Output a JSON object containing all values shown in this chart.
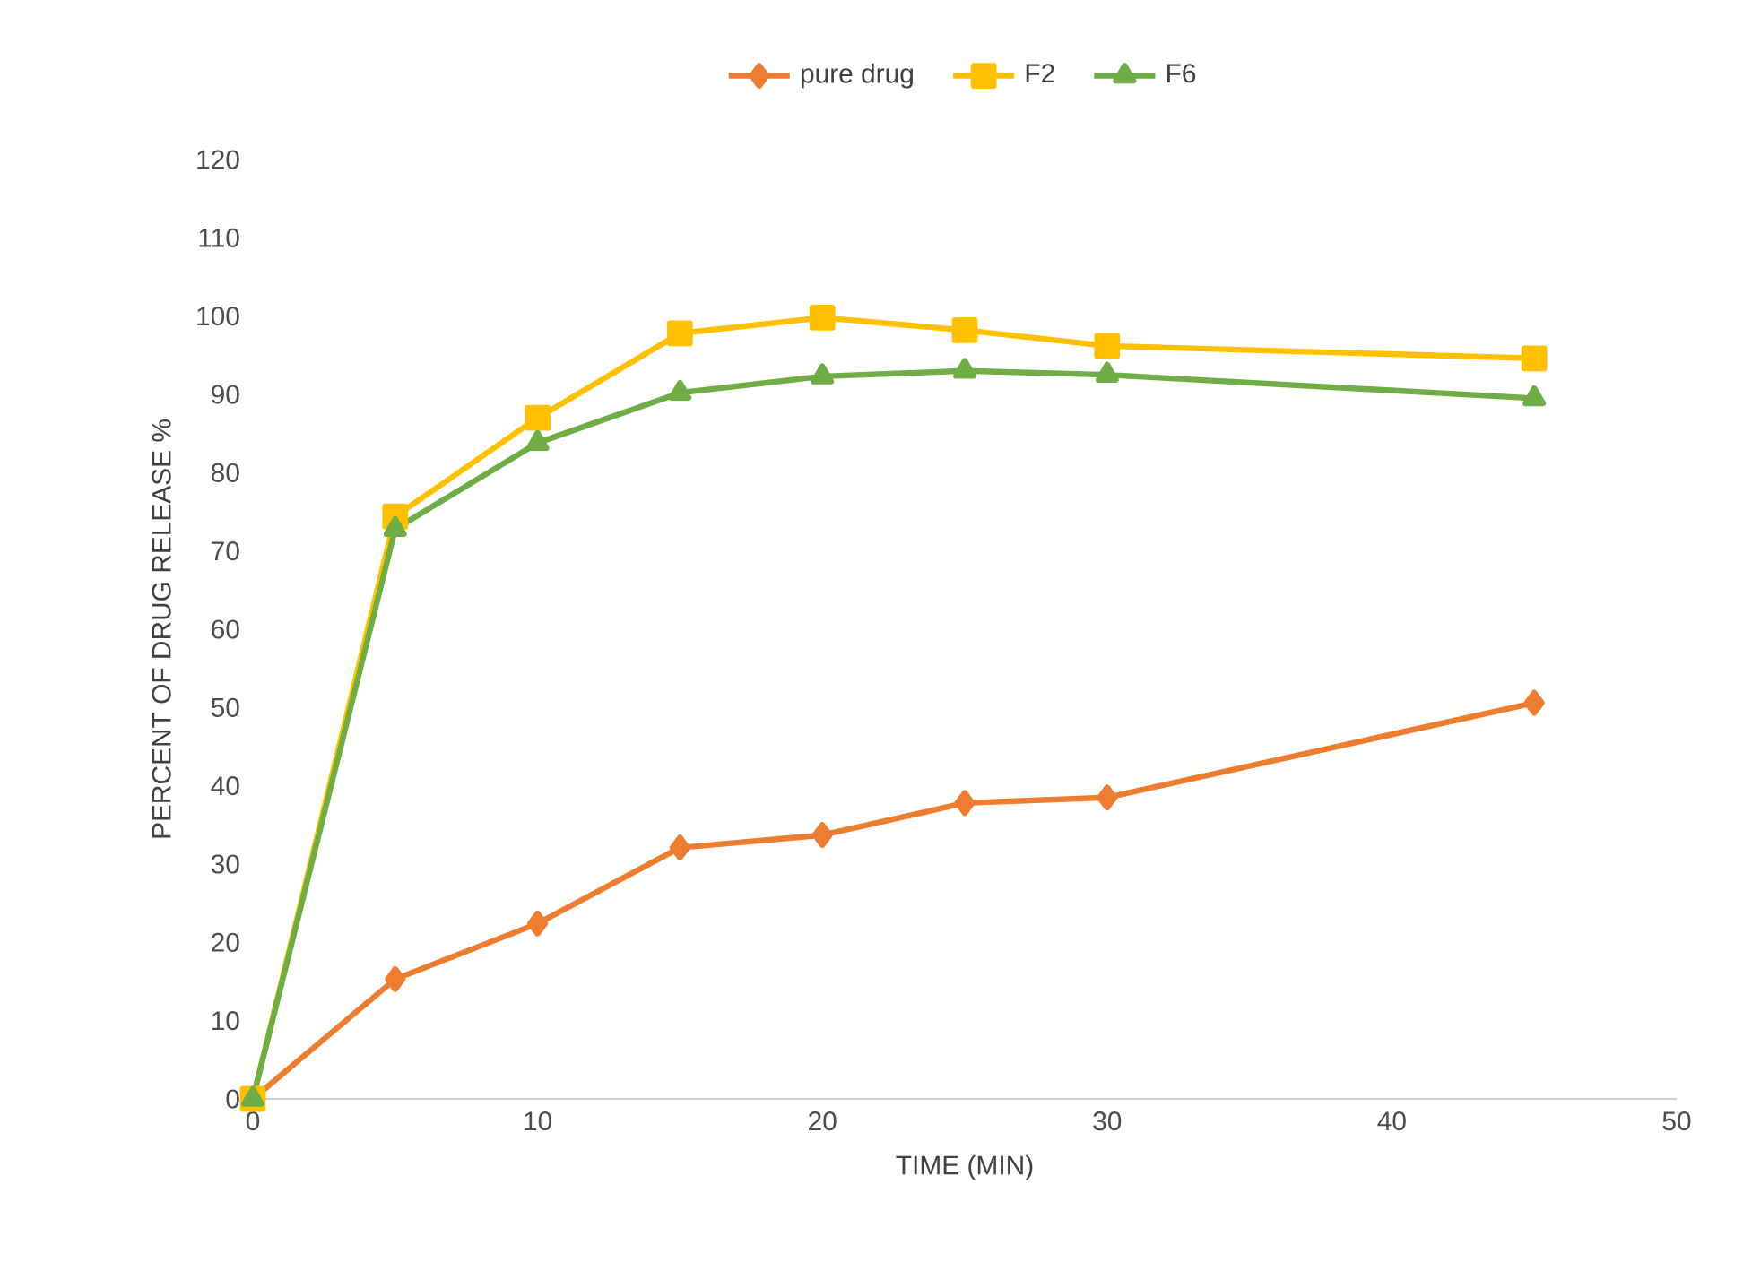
{
  "chart_data": {
    "type": "line",
    "xlabel": "TIME (MIN)",
    "ylabel": "PERCENT OF DRUG RELEASE %",
    "x": [
      0,
      5,
      10,
      15,
      20,
      25,
      30,
      45
    ],
    "series": [
      {
        "name": "pure drug",
        "color": "#ed7d31",
        "marker": "diamond",
        "values": [
          0,
          15.3,
          22.4,
          32.1,
          33.7,
          37.8,
          38.5,
          50.6
        ]
      },
      {
        "name": "F2",
        "color": "#ffc000",
        "marker": "square",
        "values": [
          0,
          74.4,
          87.0,
          97.8,
          99.8,
          98.2,
          96.2,
          94.6
        ]
      },
      {
        "name": "F6",
        "color": "#70ad47",
        "marker": "triangle",
        "values": [
          0,
          72.8,
          83.8,
          90.2,
          92.3,
          93.0,
          92.5,
          89.5
        ]
      }
    ],
    "xlim": [
      0,
      50
    ],
    "xticks": [
      0,
      10,
      20,
      30,
      40,
      50
    ],
    "ylim": [
      0,
      120
    ],
    "yticks": [
      0,
      10,
      20,
      30,
      40,
      50,
      60,
      70,
      80,
      90,
      100,
      110,
      120
    ],
    "grid": false,
    "legend": "top",
    "line_style": "solid"
  }
}
